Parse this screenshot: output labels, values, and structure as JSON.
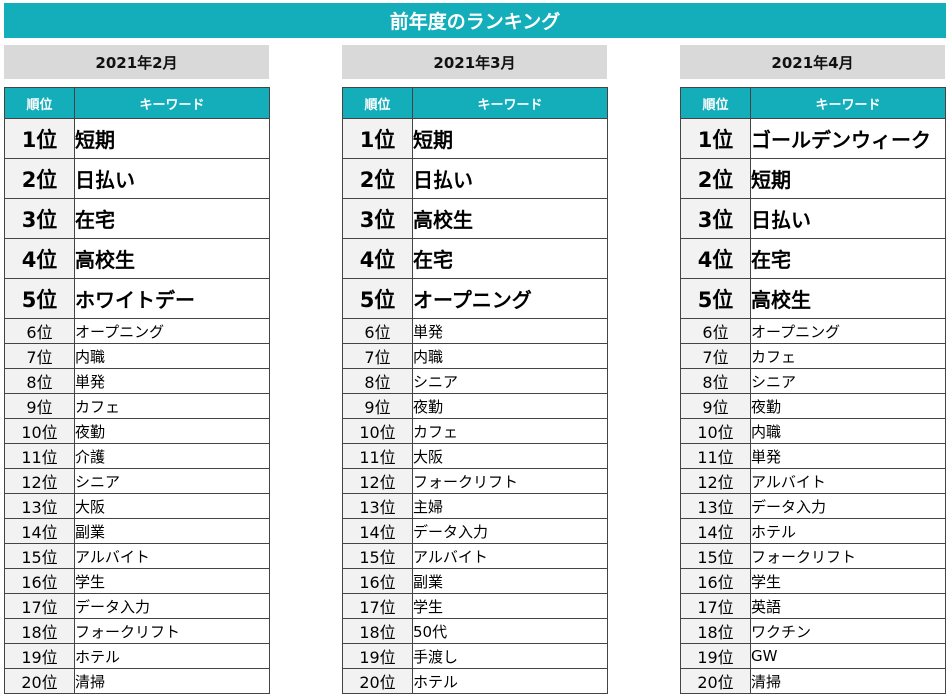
{
  "title": "前年度のランキング",
  "header": {
    "rank": "順位",
    "keyword": "キーワード"
  },
  "months": [
    {
      "label": "2021年2月",
      "rows": [
        {
          "rank": "1位",
          "keyword": "短期"
        },
        {
          "rank": "2位",
          "keyword": "日払い"
        },
        {
          "rank": "3位",
          "keyword": "在宅"
        },
        {
          "rank": "4位",
          "keyword": "高校生"
        },
        {
          "rank": "5位",
          "keyword": "ホワイトデー"
        },
        {
          "rank": "6位",
          "keyword": "オープニング"
        },
        {
          "rank": "7位",
          "keyword": "内職"
        },
        {
          "rank": "8位",
          "keyword": "単発"
        },
        {
          "rank": "9位",
          "keyword": "カフェ"
        },
        {
          "rank": "10位",
          "keyword": "夜勤"
        },
        {
          "rank": "11位",
          "keyword": "介護"
        },
        {
          "rank": "12位",
          "keyword": "シニア"
        },
        {
          "rank": "13位",
          "keyword": "大阪"
        },
        {
          "rank": "14位",
          "keyword": "副業"
        },
        {
          "rank": "15位",
          "keyword": "アルバイト"
        },
        {
          "rank": "16位",
          "keyword": "学生"
        },
        {
          "rank": "17位",
          "keyword": "データ入力"
        },
        {
          "rank": "18位",
          "keyword": "フォークリフト"
        },
        {
          "rank": "19位",
          "keyword": "ホテル"
        },
        {
          "rank": "20位",
          "keyword": "清掃"
        }
      ]
    },
    {
      "label": "2021年3月",
      "rows": [
        {
          "rank": "1位",
          "keyword": "短期"
        },
        {
          "rank": "2位",
          "keyword": "日払い"
        },
        {
          "rank": "3位",
          "keyword": "高校生"
        },
        {
          "rank": "4位",
          "keyword": "在宅"
        },
        {
          "rank": "5位",
          "keyword": "オープニング"
        },
        {
          "rank": "6位",
          "keyword": "単発"
        },
        {
          "rank": "7位",
          "keyword": "内職"
        },
        {
          "rank": "8位",
          "keyword": "シニア"
        },
        {
          "rank": "9位",
          "keyword": "夜勤"
        },
        {
          "rank": "10位",
          "keyword": "カフェ"
        },
        {
          "rank": "11位",
          "keyword": "大阪"
        },
        {
          "rank": "12位",
          "keyword": "フォークリフト"
        },
        {
          "rank": "13位",
          "keyword": "主婦"
        },
        {
          "rank": "14位",
          "keyword": "データ入力"
        },
        {
          "rank": "15位",
          "keyword": "アルバイト"
        },
        {
          "rank": "16位",
          "keyword": "副業"
        },
        {
          "rank": "17位",
          "keyword": "学生"
        },
        {
          "rank": "18位",
          "keyword": "50代"
        },
        {
          "rank": "19位",
          "keyword": "手渡し"
        },
        {
          "rank": "20位",
          "keyword": "ホテル"
        }
      ]
    },
    {
      "label": "2021年4月",
      "rows": [
        {
          "rank": "1位",
          "keyword": "ゴールデンウィーク"
        },
        {
          "rank": "2位",
          "keyword": "短期"
        },
        {
          "rank": "3位",
          "keyword": "日払い"
        },
        {
          "rank": "4位",
          "keyword": "在宅"
        },
        {
          "rank": "5位",
          "keyword": "高校生"
        },
        {
          "rank": "6位",
          "keyword": "オープニング"
        },
        {
          "rank": "7位",
          "keyword": "カフェ"
        },
        {
          "rank": "8位",
          "keyword": "シニア"
        },
        {
          "rank": "9位",
          "keyword": "夜勤"
        },
        {
          "rank": "10位",
          "keyword": "内職"
        },
        {
          "rank": "11位",
          "keyword": "単発"
        },
        {
          "rank": "12位",
          "keyword": "アルバイト"
        },
        {
          "rank": "13位",
          "keyword": "データ入力"
        },
        {
          "rank": "14位",
          "keyword": "ホテル"
        },
        {
          "rank": "15位",
          "keyword": "フォークリフト"
        },
        {
          "rank": "16位",
          "keyword": "学生"
        },
        {
          "rank": "17位",
          "keyword": "英語"
        },
        {
          "rank": "18位",
          "keyword": "ワクチン"
        },
        {
          "rank": "19位",
          "keyword": "GW"
        },
        {
          "rank": "20位",
          "keyword": "清掃"
        }
      ]
    }
  ]
}
